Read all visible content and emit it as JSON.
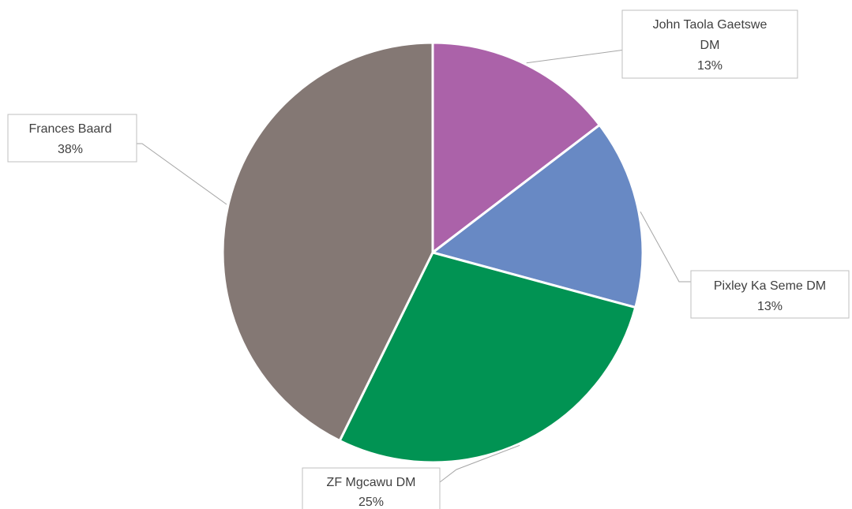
{
  "chart_data": {
    "type": "pie",
    "title": "",
    "legend": "none",
    "slices": [
      {
        "label_lines": [
          "John Taola Gaetswe",
          "DM"
        ],
        "value": 13,
        "value_label": "13%",
        "color": "#ab62a9"
      },
      {
        "label_lines": [
          "Pixley Ka Seme DM"
        ],
        "value": 13,
        "value_label": "13%",
        "color": "#6889c4"
      },
      {
        "label_lines": [
          "ZF Mgcawu DM"
        ],
        "value": 25,
        "value_label": "25%",
        "color": "#019353"
      },
      {
        "label_lines": [
          "Frances Baard"
        ],
        "value": 38,
        "value_label": "38%",
        "color": "#847874"
      }
    ]
  }
}
